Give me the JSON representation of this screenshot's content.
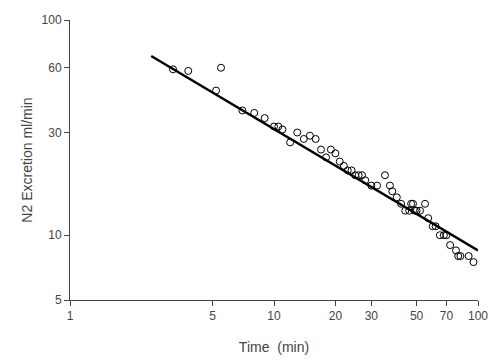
{
  "chart_data": {
    "type": "scatter",
    "xlabel": "Time  (min)",
    "ylabel": "N2 Excretion ml/min",
    "log": true,
    "grid": false,
    "xlim": [
      1,
      100
    ],
    "ylim": [
      5,
      100
    ],
    "xticks": [
      1,
      5,
      10,
      20,
      30,
      50,
      70,
      100
    ],
    "yticks": [
      5,
      10,
      30,
      60,
      100
    ],
    "series": [
      {
        "type": "line",
        "color": "#000000",
        "x": [
          2.5,
          100
        ],
        "values": [
          68,
          8.5
        ]
      },
      {
        "type": "scatter",
        "color": "#000000",
        "marker": "circle-open",
        "x": [
          3.2,
          3.8,
          5.2,
          5.5,
          7,
          8,
          9,
          10,
          10.5,
          11,
          12,
          13,
          14,
          15,
          16,
          17,
          18,
          19,
          20,
          21,
          22,
          23,
          24,
          25,
          26,
          27,
          28,
          30,
          32,
          35,
          37,
          38,
          40,
          42,
          44,
          46,
          47,
          48,
          49,
          50,
          52,
          55,
          57,
          60,
          62,
          65,
          68,
          70,
          73,
          78,
          80,
          82,
          90,
          95
        ],
        "values": [
          59,
          58,
          47,
          60,
          38,
          37,
          35,
          32,
          32,
          31,
          27,
          30,
          28,
          29,
          28,
          25,
          23,
          25,
          24,
          22,
          21,
          20,
          20,
          19,
          19,
          19,
          18,
          17,
          17,
          19,
          17,
          16,
          15,
          14,
          13,
          13,
          14,
          14,
          13,
          13,
          13,
          14,
          12,
          11,
          11,
          10,
          10,
          10,
          9,
          8.5,
          8,
          8,
          8,
          7.5
        ]
      }
    ]
  }
}
